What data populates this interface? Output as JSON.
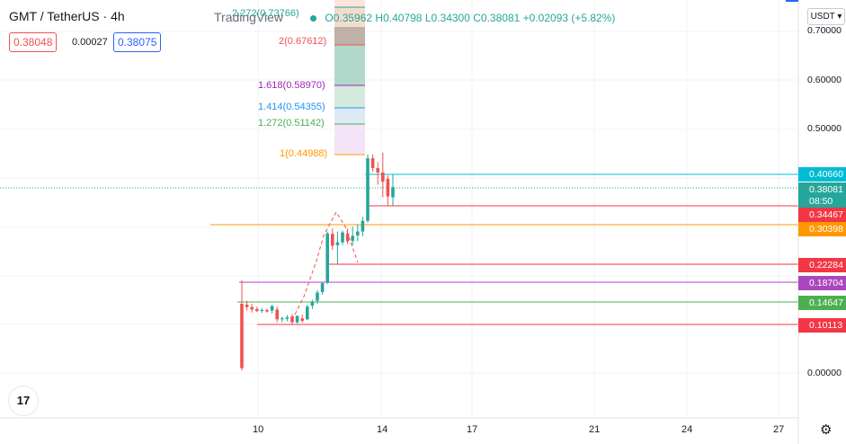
{
  "header": {
    "symbol": "GMT / TetherUS · 4h",
    "brand": "TradingView",
    "bid": "0.38048",
    "spread": "0.00027",
    "ask": "0.38075",
    "ohlc": {
      "open_label": "O",
      "open": "0.35962",
      "high_label": "H",
      "high": "0.40798",
      "low_label": "L",
      "low": "0.34300",
      "close_label": "C",
      "close": "0.38081",
      "change": "+0.02093 (+5.82%)"
    },
    "currency_selector": "USDT"
  },
  "colors": {
    "up": "#26a69a",
    "down": "#ef5350",
    "bid_box": "#ef5350",
    "ask_box": "#2962ff"
  },
  "price_axis": {
    "ticks": [
      "0.70000",
      "0.60000",
      "0.50000",
      "0.00000"
    ],
    "tags": [
      {
        "text": "0.40660",
        "color": "#00bcd4"
      },
      {
        "text": "0.38081",
        "color": "#26a69a"
      },
      {
        "text": "08:50",
        "color": "#26a69a"
      },
      {
        "text": "0.34467",
        "color": "#f23645"
      },
      {
        "text": "0.30398",
        "color": "#ff9800"
      },
      {
        "text": "0.22284",
        "color": "#f23645"
      },
      {
        "text": "0.18704",
        "color": "#ab47bc"
      },
      {
        "text": "0.14647",
        "color": "#4caf50"
      },
      {
        "text": "0.10113",
        "color": "#f23645"
      }
    ]
  },
  "time_axis": {
    "ticks": [
      "10",
      "14",
      "17",
      "21",
      "24",
      "27"
    ]
  },
  "fib_labels": [
    {
      "text": "2.272(0.73766)",
      "color": "#26a69a"
    },
    {
      "text": "2(0.67612)",
      "color": "#ef5350"
    },
    {
      "text": "1.618(0.58970)",
      "color": "#9c27b0"
    },
    {
      "text": "1.414(0.54355)",
      "color": "#2196f3"
    },
    {
      "text": "1.272(0.51142)",
      "color": "#4caf50"
    },
    {
      "text": "1(0.44988)",
      "color": "#ff9800"
    }
  ],
  "logo_text": "17",
  "icons": {
    "settings": "gear-icon",
    "logo": "tradingview-logo"
  },
  "chart_data": {
    "type": "candlestick",
    "candles": [
      {
        "o": 0.142,
        "h": 0.19,
        "l": 0.005,
        "c": 0.01
      },
      {
        "o": 0.14,
        "h": 0.148,
        "l": 0.128,
        "c": 0.135
      },
      {
        "o": 0.135,
        "h": 0.142,
        "l": 0.124,
        "c": 0.13
      },
      {
        "o": 0.131,
        "h": 0.136,
        "l": 0.125,
        "c": 0.127
      },
      {
        "o": 0.127,
        "h": 0.133,
        "l": 0.123,
        "c": 0.129
      },
      {
        "o": 0.129,
        "h": 0.132,
        "l": 0.124,
        "c": 0.126
      },
      {
        "o": 0.128,
        "h": 0.14,
        "l": 0.122,
        "c": 0.137
      },
      {
        "o": 0.13,
        "h": 0.136,
        "l": 0.104,
        "c": 0.11
      },
      {
        "o": 0.11,
        "h": 0.116,
        "l": 0.104,
        "c": 0.112
      },
      {
        "o": 0.111,
        "h": 0.119,
        "l": 0.106,
        "c": 0.114
      },
      {
        "o": 0.116,
        "h": 0.121,
        "l": 0.1,
        "c": 0.104
      },
      {
        "o": 0.104,
        "h": 0.118,
        "l": 0.101,
        "c": 0.117
      },
      {
        "o": 0.112,
        "h": 0.12,
        "l": 0.103,
        "c": 0.107
      },
      {
        "o": 0.11,
        "h": 0.14,
        "l": 0.108,
        "c": 0.136
      },
      {
        "o": 0.138,
        "h": 0.15,
        "l": 0.131,
        "c": 0.146
      },
      {
        "o": 0.148,
        "h": 0.17,
        "l": 0.142,
        "c": 0.165
      },
      {
        "o": 0.166,
        "h": 0.186,
        "l": 0.16,
        "c": 0.184
      },
      {
        "o": 0.185,
        "h": 0.29,
        "l": 0.182,
        "c": 0.286
      },
      {
        "o": 0.285,
        "h": 0.296,
        "l": 0.252,
        "c": 0.261
      },
      {
        "o": 0.262,
        "h": 0.29,
        "l": 0.224,
        "c": 0.268
      },
      {
        "o": 0.268,
        "h": 0.292,
        "l": 0.262,
        "c": 0.288
      },
      {
        "o": 0.286,
        "h": 0.296,
        "l": 0.264,
        "c": 0.27
      },
      {
        "o": 0.271,
        "h": 0.3,
        "l": 0.262,
        "c": 0.281
      },
      {
        "o": 0.282,
        "h": 0.305,
        "l": 0.27,
        "c": 0.29
      },
      {
        "o": 0.29,
        "h": 0.32,
        "l": 0.28,
        "c": 0.312
      },
      {
        "o": 0.312,
        "h": 0.448,
        "l": 0.308,
        "c": 0.44
      },
      {
        "o": 0.44,
        "h": 0.448,
        "l": 0.412,
        "c": 0.42
      },
      {
        "o": 0.42,
        "h": 0.432,
        "l": 0.386,
        "c": 0.411
      },
      {
        "o": 0.411,
        "h": 0.452,
        "l": 0.36,
        "c": 0.392
      },
      {
        "o": 0.398,
        "h": 0.405,
        "l": 0.344,
        "c": 0.362
      },
      {
        "o": 0.36,
        "h": 0.408,
        "l": 0.343,
        "c": 0.381
      }
    ]
  }
}
